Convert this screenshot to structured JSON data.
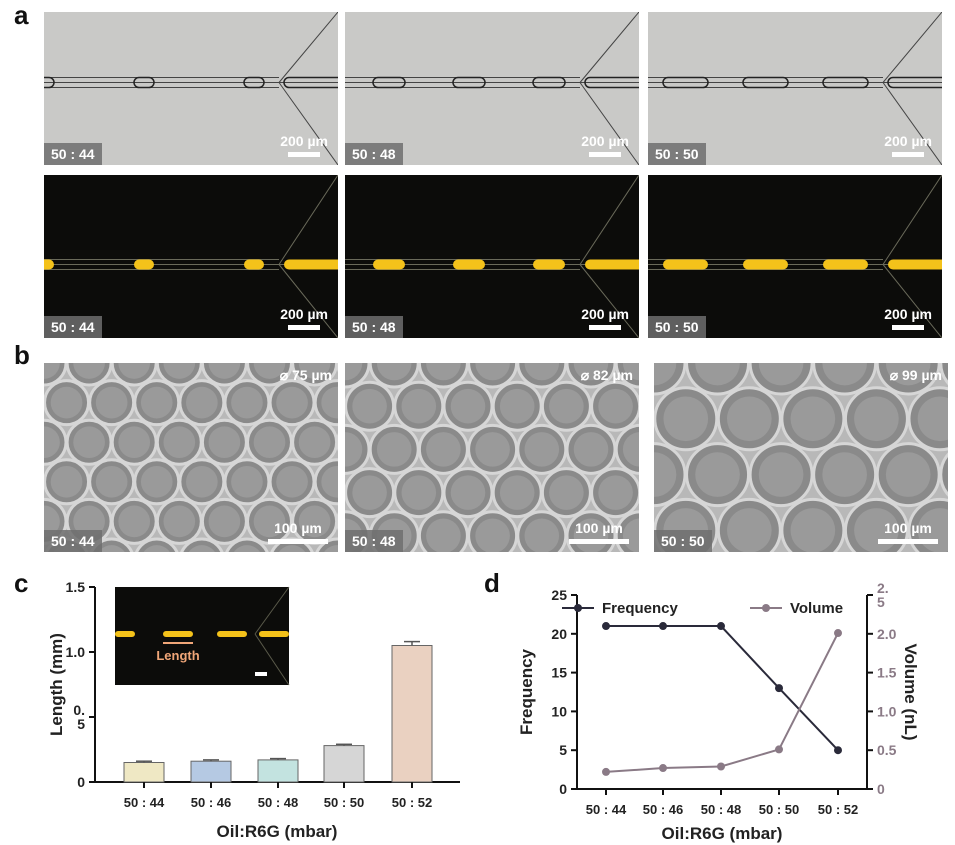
{
  "panel_labels": {
    "a": "a",
    "b": "b",
    "c": "c",
    "d": "d"
  },
  "panel_a": {
    "bright": [
      {
        "ratio": "50 : 44",
        "scale": "200 µm"
      },
      {
        "ratio": "50 : 48",
        "scale": "200 µm"
      },
      {
        "ratio": "50 : 50",
        "scale": "200 µm"
      }
    ],
    "fluor": [
      {
        "ratio": "50 : 44",
        "scale": "200 µm"
      },
      {
        "ratio": "50 : 48",
        "scale": "200 µm"
      },
      {
        "ratio": "50 : 50",
        "scale": "200 µm"
      }
    ]
  },
  "panel_b": [
    {
      "ratio": "50 : 44",
      "scale": "100 µm",
      "diameter": "⌀ 75 µm"
    },
    {
      "ratio": "50 : 48",
      "scale": "100 µm",
      "diameter": "⌀ 82 µm"
    },
    {
      "ratio": "50 : 50",
      "scale": "100 µm",
      "diameter": "⌀ 99 µm"
    }
  ],
  "chart_data": [
    {
      "type": "bar",
      "categories": [
        "50 : 44",
        "50 : 46",
        "50 : 48",
        "50 : 50",
        "50 : 52"
      ],
      "values": [
        0.15,
        0.16,
        0.17,
        0.28,
        1.05
      ],
      "errors": [
        0.01,
        0.01,
        0.01,
        0.01,
        0.03
      ],
      "colors": [
        "#efe8c4",
        "#b5c9e3",
        "#c3e3e0",
        "#d6d6d6",
        "#ead1c1"
      ],
      "xlabel": "Oil:R6G (mbar)",
      "ylabel": "Length (mm)",
      "ylim": [
        0,
        1.5
      ],
      "yticks": [
        "0",
        "0.\n5",
        "1.0",
        "1.5"
      ],
      "inset_label": "Length"
    },
    {
      "type": "line",
      "categories": [
        "50 : 44",
        "50 : 46",
        "50 : 48",
        "50 : 50",
        "50 : 52"
      ],
      "series": [
        {
          "name": "Frequency",
          "axis": "left",
          "values": [
            21,
            21,
            21,
            13,
            5
          ],
          "color": "#2a2a3a"
        },
        {
          "name": "Volume",
          "axis": "right",
          "values": [
            0.22,
            0.27,
            0.29,
            0.51,
            2.01
          ],
          "color": "#8a7a86"
        }
      ],
      "xlabel": "Oil:R6G (mbar)",
      "ylabel": "Frequency",
      "y2label": "Volume (nL)",
      "ylim": [
        0,
        25
      ],
      "y2lim": [
        0,
        2.5
      ],
      "yticks": [
        "0",
        "5",
        "10",
        "15",
        "20",
        "25"
      ],
      "y2ticks": [
        "0",
        "0.5",
        "1.0",
        "1.5",
        "2.0",
        "2.\n5"
      ],
      "legend": "top"
    }
  ]
}
